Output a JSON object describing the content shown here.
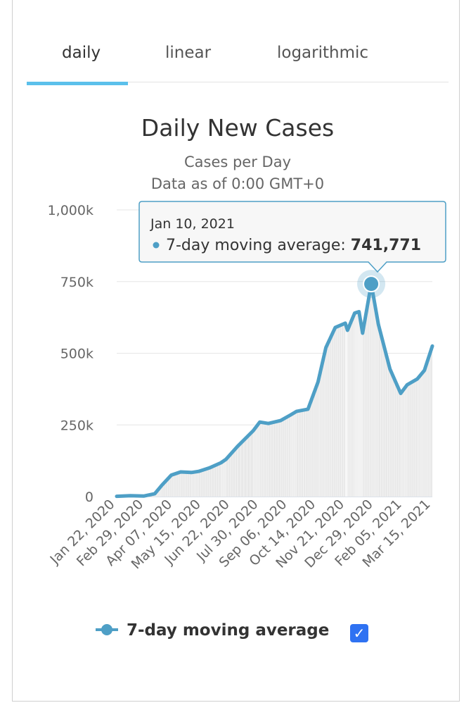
{
  "tabs": [
    {
      "label": "daily",
      "active": true
    },
    {
      "label": "linear",
      "active": false
    },
    {
      "label": "logarithmic",
      "active": false
    }
  ],
  "tooltip": {
    "date": "Jan 10, 2021",
    "series": "7-day moving average: ",
    "value": "741,771"
  },
  "legend": {
    "label": "7-day moving average",
    "checked": true,
    "check_glyph": "✓"
  },
  "colors": {
    "accent": "#5bc0eb",
    "line": "#4e9fc6",
    "area": "#e8e8e8",
    "checkbox": "#2f72f2"
  },
  "chart_data": {
    "type": "line",
    "title": "Daily New Cases",
    "subtitle": "Cases per Day",
    "subtitle2": "Data as of 0:00 GMT+0",
    "ylim": [
      0,
      1000000
    ],
    "yticks": [
      0,
      250000,
      500000,
      750000,
      1000000
    ],
    "ytick_labels": [
      "0",
      "250k",
      "500k",
      "750k",
      "1,000k"
    ],
    "xtick_labels": [
      "Jan 22, 2020",
      "Feb 29, 2020",
      "Apr 07, 2020",
      "May 15, 2020",
      "Jun 22, 2020",
      "Jul 30, 2020",
      "Sep 06, 2020",
      "Oct 14, 2020",
      "Nov 21, 2020",
      "Dec 29, 2020",
      "Feb 05, 2021",
      "Mar 15, 2021"
    ],
    "grid": true,
    "highlight": {
      "x": "Jan 10, 2021",
      "y": 741771
    },
    "series": [
      {
        "name": "7-day moving average",
        "points": [
          [
            "Jan 22, 2020",
            1000
          ],
          [
            "Feb 10, 2020",
            3000
          ],
          [
            "Feb 29, 2020",
            2000
          ],
          [
            "Mar 15, 2020",
            10000
          ],
          [
            "Mar 25, 2020",
            40000
          ],
          [
            "Apr 07, 2020",
            75000
          ],
          [
            "Apr 20, 2020",
            86000
          ],
          [
            "May 05, 2020",
            84000
          ],
          [
            "May 15, 2020",
            88000
          ],
          [
            "May 30, 2020",
            100000
          ],
          [
            "Jun 15, 2020",
            118000
          ],
          [
            "Jun 22, 2020",
            130000
          ],
          [
            "Jul 08, 2020",
            175000
          ],
          [
            "Jul 30, 2020",
            230000
          ],
          [
            "Aug 08, 2020",
            260000
          ],
          [
            "Aug 20, 2020",
            255000
          ],
          [
            "Sep 06, 2020",
            265000
          ],
          [
            "Sep 20, 2020",
            285000
          ],
          [
            "Sep 28, 2020",
            297000
          ],
          [
            "Oct 14, 2020",
            305000
          ],
          [
            "Oct 28, 2020",
            400000
          ],
          [
            "Nov 08, 2020",
            520000
          ],
          [
            "Nov 21, 2020",
            590000
          ],
          [
            "Dec 05, 2020",
            605000
          ],
          [
            "Dec 08, 2020",
            580000
          ],
          [
            "Dec 18, 2020",
            640000
          ],
          [
            "Dec 24, 2020",
            645000
          ],
          [
            "Dec 29, 2020",
            570000
          ],
          [
            "Jan 10, 2021",
            741771
          ],
          [
            "Jan 20, 2021",
            600000
          ],
          [
            "Feb 05, 2021",
            445000
          ],
          [
            "Feb 20, 2021",
            360000
          ],
          [
            "Mar 01, 2021",
            390000
          ],
          [
            "Mar 15, 2021",
            410000
          ],
          [
            "Mar 25, 2021",
            440000
          ],
          [
            "Apr 05, 2021",
            525000
          ]
        ]
      }
    ]
  }
}
